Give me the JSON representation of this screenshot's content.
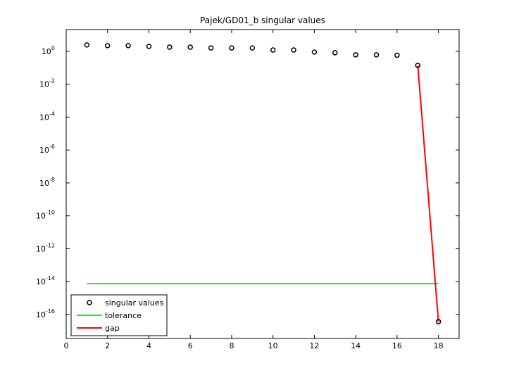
{
  "chart_data": {
    "type": "scatter",
    "title": "Pajek/GD01_b singular values",
    "xlim": [
      0,
      19
    ],
    "xticks": [
      0,
      2,
      4,
      6,
      8,
      10,
      12,
      14,
      16,
      18
    ],
    "ylim": [
      3.5e-18,
      21
    ],
    "log_y": true,
    "yticks": [
      {
        "value": 1e-16,
        "label": "10^-16"
      },
      {
        "value": 1e-14,
        "label": "10^-14"
      },
      {
        "value": 1e-12,
        "label": "10^-12"
      },
      {
        "value": 1e-10,
        "label": "10^-10"
      },
      {
        "value": 1e-08,
        "label": "10^-8"
      },
      {
        "value": 1e-06,
        "label": "10^-6"
      },
      {
        "value": 0.0001,
        "label": "10^-4"
      },
      {
        "value": 0.01,
        "label": "10^-2"
      },
      {
        "value": 1,
        "label": "10^0"
      }
    ],
    "legend": "lower left",
    "series": [
      {
        "name": "singular values",
        "color": "#000000",
        "mark": "circle",
        "x": [
          1,
          2,
          3,
          4,
          5,
          6,
          7,
          8,
          9,
          10,
          11,
          12,
          13,
          14,
          15,
          16,
          17,
          18
        ],
        "values": [
          2.43,
          2.2,
          2.2,
          2.0,
          1.8,
          1.8,
          1.6,
          1.6,
          1.6,
          1.2,
          1.2,
          0.9,
          0.82,
          0.61,
          0.61,
          0.58,
          0.14,
          3.7e-17
        ]
      },
      {
        "name": "tolerance",
        "color": "#00ff00",
        "mark": "line",
        "x": [
          1,
          18
        ],
        "values": [
          7.6e-15,
          7.6e-15
        ]
      },
      {
        "name": "gap",
        "color": "#ff0000",
        "mark": "line",
        "x": [
          17,
          18
        ],
        "values": [
          0.14,
          3.7e-17
        ]
      }
    ]
  }
}
